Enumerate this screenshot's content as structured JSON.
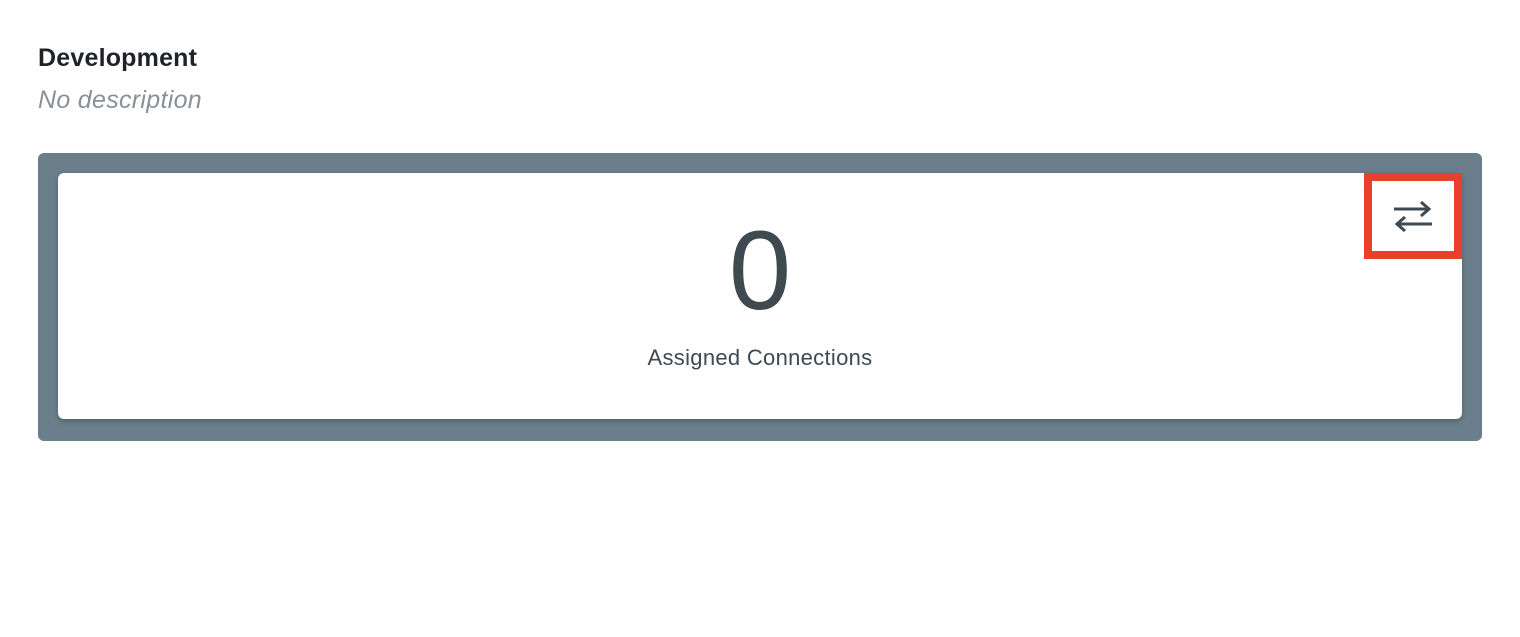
{
  "header": {
    "title": "Development",
    "description": "No description"
  },
  "stat_card": {
    "count": "0",
    "label": "Assigned Connections",
    "action_icon": "swap-arrows-icon"
  },
  "colors": {
    "panel_background": "#6a7f8b",
    "highlight_border": "#e8402a",
    "text_dark": "#3f4950",
    "text_muted": "#8a9096"
  }
}
